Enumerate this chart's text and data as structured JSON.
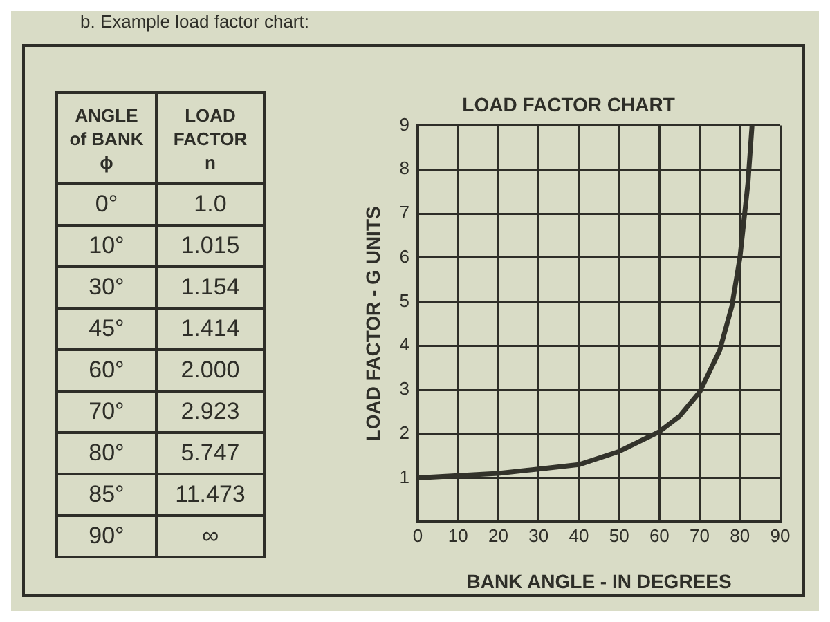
{
  "chart_data": [
    {
      "type": "other",
      "title": "b. Example load factor chart:",
      "annotations": [
        "ANGLE\nof BANK\nϕ",
        "LOAD\nFACTOR\nn",
        "0°",
        "1.0",
        "10°",
        "1.015",
        "30°",
        "1.154",
        "45°",
        "1.414",
        "60°",
        "2.000",
        "70°",
        "2.923",
        "80°",
        "5.747",
        "85°",
        "11.473",
        "90°",
        "∞"
      ]
    },
    {
      "type": "line",
      "title": "LOAD FACTOR CHART",
      "xlabel": "BANK ANGLE - IN DEGREES",
      "ylabel": "LOAD FACTOR - G UNITS",
      "x": [
        0,
        10,
        20,
        30,
        40,
        50,
        60,
        65,
        70,
        75,
        78,
        80,
        82,
        83
      ],
      "series": [
        {
          "color": "#33332b",
          "values": [
            1.0,
            1.05,
            1.1,
            1.2,
            1.3,
            1.6,
            2.05,
            2.4,
            2.95,
            3.9,
            4.9,
            6.0,
            7.7,
            9.0
          ]
        }
      ],
      "xlim": [
        0,
        90
      ],
      "xticks": [
        0,
        10,
        20,
        30,
        40,
        50,
        60,
        70,
        80,
        90
      ],
      "ylim": [
        0,
        9
      ],
      "yticks": [
        {
          "value": 0,
          "label": null
        },
        1,
        2,
        3,
        4,
        5,
        6,
        7,
        8,
        9
      ],
      "grid": true,
      "legend": false,
      "marker": "none",
      "line_style": "solid"
    }
  ]
}
